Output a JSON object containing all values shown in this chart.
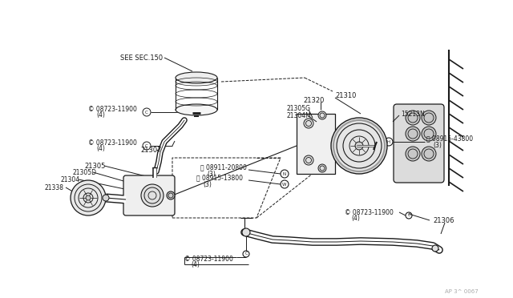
{
  "bg_color": "#FFFFFF",
  "line_color": "#1a1a1a",
  "fig_width": 6.4,
  "fig_height": 3.72,
  "dpi": 100,
  "watermark": "AP 3^ 0067",
  "labels": {
    "see_sec": "SEE SEC.150",
    "p21307": "21307",
    "p21305": "21305",
    "p21305D": "21305D",
    "p21304": "21304",
    "p21338": "21338",
    "p21320": "21320",
    "p21310": "21310",
    "p21305G": "21305G",
    "p21304M": "21304M",
    "p15213N": "15213N",
    "p21306": "21306",
    "c_bolt": "08723-11900",
    "c_qty": "(4)",
    "h_bolt": "08915-43800",
    "h_qty": "(3)",
    "n_bolt": "08911-20800",
    "n_qty": "(3)",
    "w_bolt": "08915-13800",
    "w_qty": "(3)"
  }
}
